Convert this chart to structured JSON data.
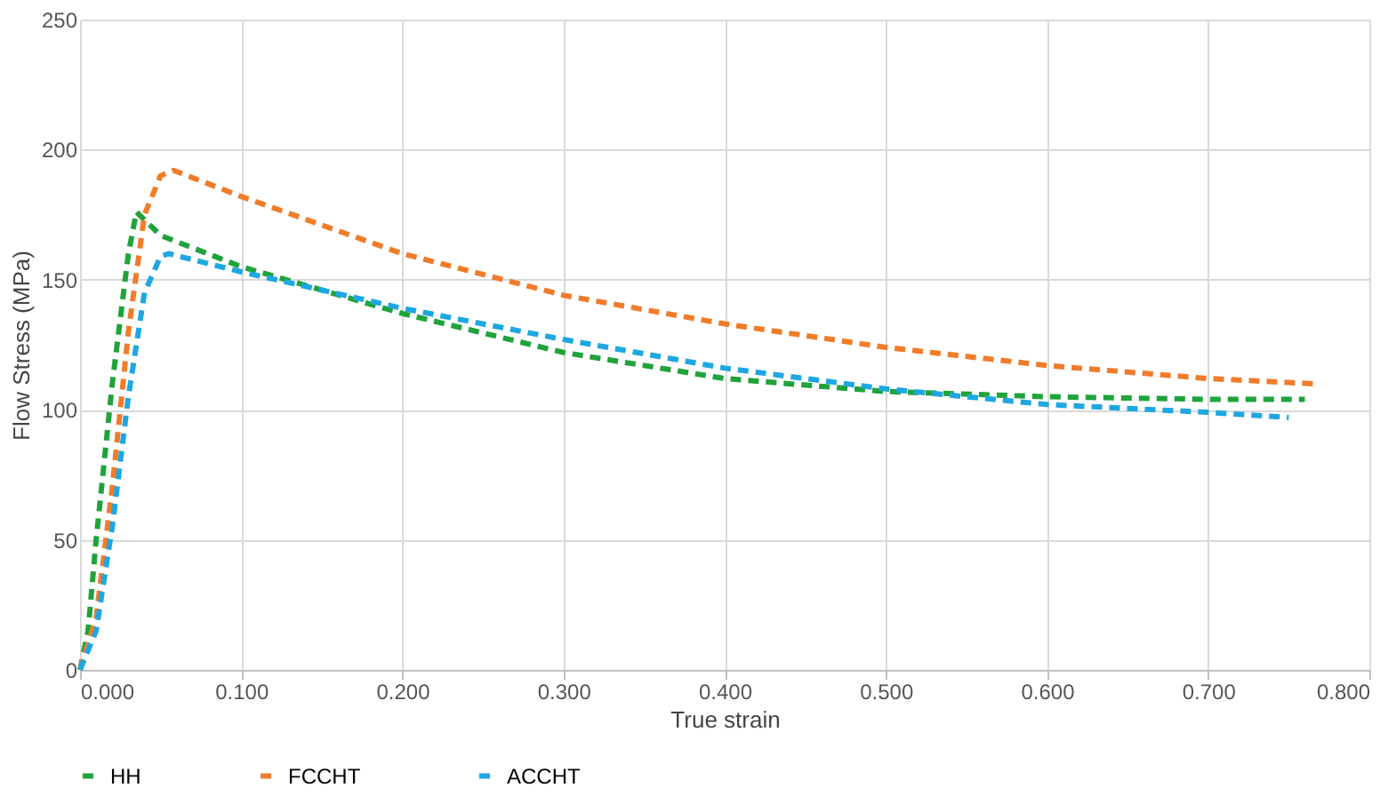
{
  "chart_data": {
    "type": "line",
    "xlabel": "True strain",
    "ylabel": "Flow Stress (MPa)",
    "xlim": [
      0,
      0.8
    ],
    "xticks": [
      {
        "value": 0,
        "label": "0.000"
      },
      {
        "value": 0.1,
        "label": "0.100"
      },
      {
        "value": 0.2,
        "label": "0.200"
      },
      {
        "value": 0.3,
        "label": "0.300"
      },
      {
        "value": 0.4,
        "label": "0.400"
      },
      {
        "value": 0.5,
        "label": "0.500"
      },
      {
        "value": 0.6,
        "label": "0.600"
      },
      {
        "value": 0.7,
        "label": "0.700"
      },
      {
        "value": 0.8,
        "label": "0.800"
      }
    ],
    "ylim": [
      0,
      250
    ],
    "yticks": [
      0,
      50,
      100,
      150,
      200,
      250
    ],
    "grid": true,
    "legend": "bottom",
    "line_style": "dashed",
    "marker": "none",
    "series": [
      {
        "name": "HH",
        "color": "#1fa33a",
        "x": [
          0,
          0.005,
          0.01,
          0.02,
          0.03,
          0.035,
          0.05,
          0.1,
          0.2,
          0.3,
          0.4,
          0.5,
          0.6,
          0.7,
          0.76
        ],
        "values": [
          0,
          15,
          50,
          110,
          160,
          176,
          167,
          155,
          137,
          122,
          112,
          107,
          105,
          104,
          104
        ]
      },
      {
        "name": "FCCHT",
        "color": "#f07c2a",
        "x": [
          0,
          0.01,
          0.02,
          0.03,
          0.04,
          0.05,
          0.058,
          0.1,
          0.2,
          0.3,
          0.4,
          0.5,
          0.6,
          0.7,
          0.765
        ],
        "values": [
          0,
          20,
          70,
          130,
          175,
          190,
          192,
          182,
          160,
          144,
          133,
          124,
          117,
          112,
          110
        ]
      },
      {
        "name": "ACCHT",
        "color": "#1ea7e1",
        "x": [
          0,
          0.01,
          0.02,
          0.03,
          0.04,
          0.05,
          0.055,
          0.1,
          0.2,
          0.3,
          0.4,
          0.5,
          0.6,
          0.7,
          0.75
        ],
        "values": [
          0,
          15,
          55,
          105,
          145,
          159,
          160,
          153,
          139,
          127,
          116,
          108,
          102,
          99,
          97
        ]
      }
    ]
  }
}
